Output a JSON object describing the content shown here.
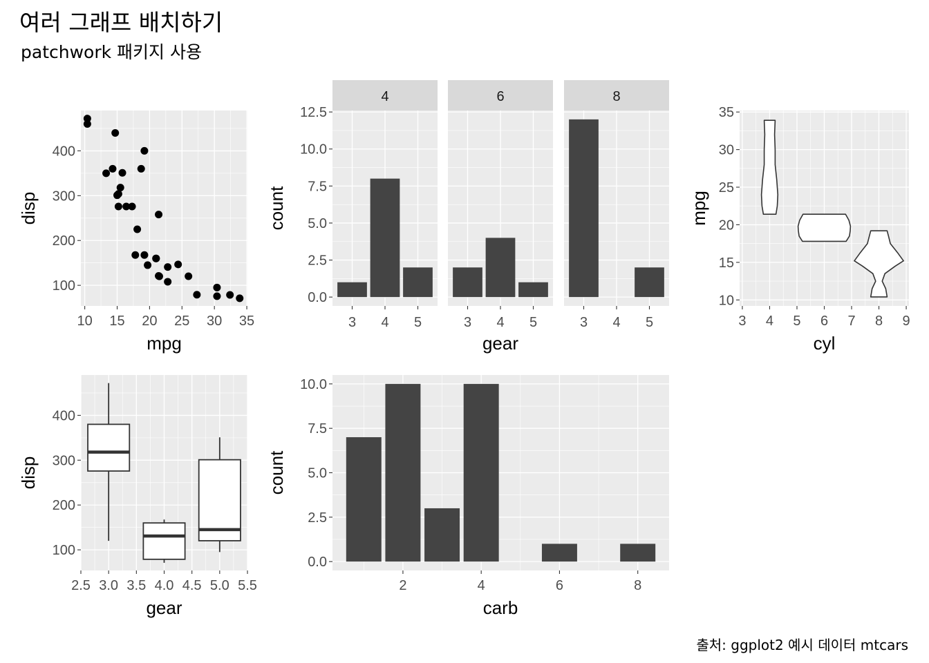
{
  "title": "여러 그래프 배치하기",
  "subtitle": "patchwork 패키지 사용",
  "caption": "출처: ggplot2 예시 데이터 mtcars",
  "colors": {
    "panel_bg": "#EBEBEB",
    "grid": "#FFFFFF",
    "bar": "#444444",
    "strip_bg": "#D9D9D9",
    "tick_text": "#4D4D4D",
    "axis_title": "#000000",
    "point": "#000000"
  },
  "chart_data": [
    {
      "type": "scatter",
      "xlabel": "mpg",
      "ylabel": "disp",
      "xlim": [
        9.4,
        35.1
      ],
      "ylim": [
        54,
        490
      ],
      "x_ticks": [
        10,
        15,
        20,
        25,
        30,
        35
      ],
      "y_ticks": [
        100,
        200,
        300,
        400
      ],
      "points": [
        [
          21,
          160
        ],
        [
          21,
          160
        ],
        [
          22.8,
          108
        ],
        [
          21.4,
          258
        ],
        [
          18.7,
          360
        ],
        [
          18.1,
          225
        ],
        [
          14.3,
          360
        ],
        [
          24.4,
          146.7
        ],
        [
          22.8,
          140.8
        ],
        [
          19.2,
          167.6
        ],
        [
          17.8,
          167.6
        ],
        [
          16.4,
          275.8
        ],
        [
          17.3,
          275.8
        ],
        [
          15.2,
          275.8
        ],
        [
          10.4,
          472
        ],
        [
          10.4,
          460
        ],
        [
          14.7,
          440
        ],
        [
          32.4,
          78.7
        ],
        [
          30.4,
          75.7
        ],
        [
          33.9,
          71.1
        ],
        [
          21.5,
          120.1
        ],
        [
          15.5,
          318
        ],
        [
          15.2,
          304
        ],
        [
          13.3,
          350
        ],
        [
          19.2,
          400
        ],
        [
          27.3,
          79
        ],
        [
          26,
          120.3
        ],
        [
          30.4,
          95.1
        ],
        [
          15.8,
          351
        ],
        [
          19.7,
          145
        ],
        [
          15,
          301
        ],
        [
          21.4,
          121
        ]
      ]
    },
    {
      "type": "bar",
      "xlabel": "gear",
      "ylabel": "count",
      "ylim": [
        -0.6,
        12.6
      ],
      "y_ticks": [
        0.0,
        2.5,
        5.0,
        7.5,
        10.0,
        12.5
      ],
      "y_tick_labels": [
        "0.0",
        "2.5",
        "5.0",
        "7.5",
        "10.0",
        "12.5"
      ],
      "categories": [
        "3",
        "4",
        "5"
      ],
      "facets": [
        {
          "label": "4",
          "values": [
            1,
            8,
            2
          ]
        },
        {
          "label": "6",
          "values": [
            2,
            4,
            1
          ]
        },
        {
          "label": "8",
          "values": [
            12,
            0,
            2
          ]
        }
      ]
    },
    {
      "type": "violin",
      "xlabel": "cyl",
      "ylabel": "mpg",
      "xlim": [
        2.9,
        9.1
      ],
      "ylim": [
        9.2,
        35.2
      ],
      "x_ticks": [
        3,
        4,
        5,
        6,
        7,
        8,
        9
      ],
      "y_ticks": [
        10,
        15,
        20,
        25,
        30,
        35
      ],
      "groups": [
        {
          "x": 4,
          "min": 21.4,
          "max": 33.9
        },
        {
          "x": 6,
          "min": 17.8,
          "max": 21.4
        },
        {
          "x": 8,
          "min": 10.4,
          "max": 19.2
        }
      ]
    },
    {
      "type": "boxplot",
      "xlabel": "gear",
      "ylabel": "disp",
      "xlim": [
        2.5,
        5.5
      ],
      "ylim": [
        54,
        490
      ],
      "x_ticks": [
        2.5,
        3.0,
        3.5,
        4.0,
        4.5,
        5.0,
        5.5
      ],
      "x_tick_labels": [
        "2.5",
        "3.0",
        "3.5",
        "4.0",
        "4.5",
        "5.0",
        "5.5"
      ],
      "y_ticks": [
        100,
        200,
        300,
        400
      ],
      "boxes": [
        {
          "x": 3,
          "min": 120.1,
          "q1": 275.8,
          "median": 318,
          "q3": 380,
          "max": 472
        },
        {
          "x": 4,
          "min": 71.1,
          "q1": 78.9,
          "median": 130.9,
          "q3": 160,
          "max": 167.6
        },
        {
          "x": 5,
          "min": 95.1,
          "q1": 120.3,
          "median": 145,
          "q3": 301,
          "max": 351
        }
      ]
    },
    {
      "type": "bar",
      "xlabel": "carb",
      "ylabel": "count",
      "xlim": [
        0.2,
        8.8
      ],
      "ylim": [
        -0.5,
        10.5
      ],
      "x_ticks": [
        2,
        4,
        6,
        8
      ],
      "y_ticks": [
        0.0,
        2.5,
        5.0,
        7.5,
        10.0
      ],
      "y_tick_labels": [
        "0.0",
        "2.5",
        "5.0",
        "7.5",
        "10.0"
      ],
      "x": [
        1,
        2,
        3,
        4,
        6,
        8
      ],
      "values": [
        7,
        10,
        3,
        10,
        1,
        1
      ]
    }
  ]
}
